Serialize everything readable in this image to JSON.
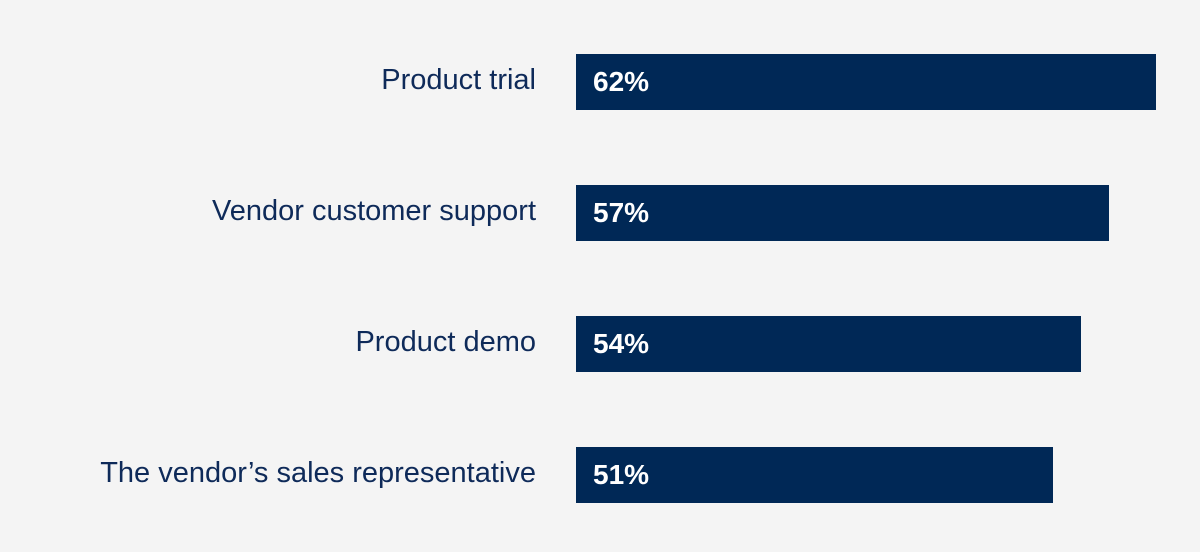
{
  "chart_data": {
    "type": "bar",
    "orientation": "horizontal",
    "categories": [
      "Product trial",
      "Vendor customer support",
      "Product demo",
      "The vendor’s sales representative"
    ],
    "values": [
      62,
      57,
      54,
      51
    ],
    "value_labels": [
      "62%",
      "57%",
      "54%",
      "51%"
    ],
    "unit": "%",
    "title": "",
    "xlabel": "",
    "ylabel": "",
    "grid": false,
    "legend": "none",
    "colors": {
      "bar": "#002856",
      "category_text": "#0e2a59",
      "value_text": "#ffffff",
      "background": "#f4f4f4"
    }
  }
}
